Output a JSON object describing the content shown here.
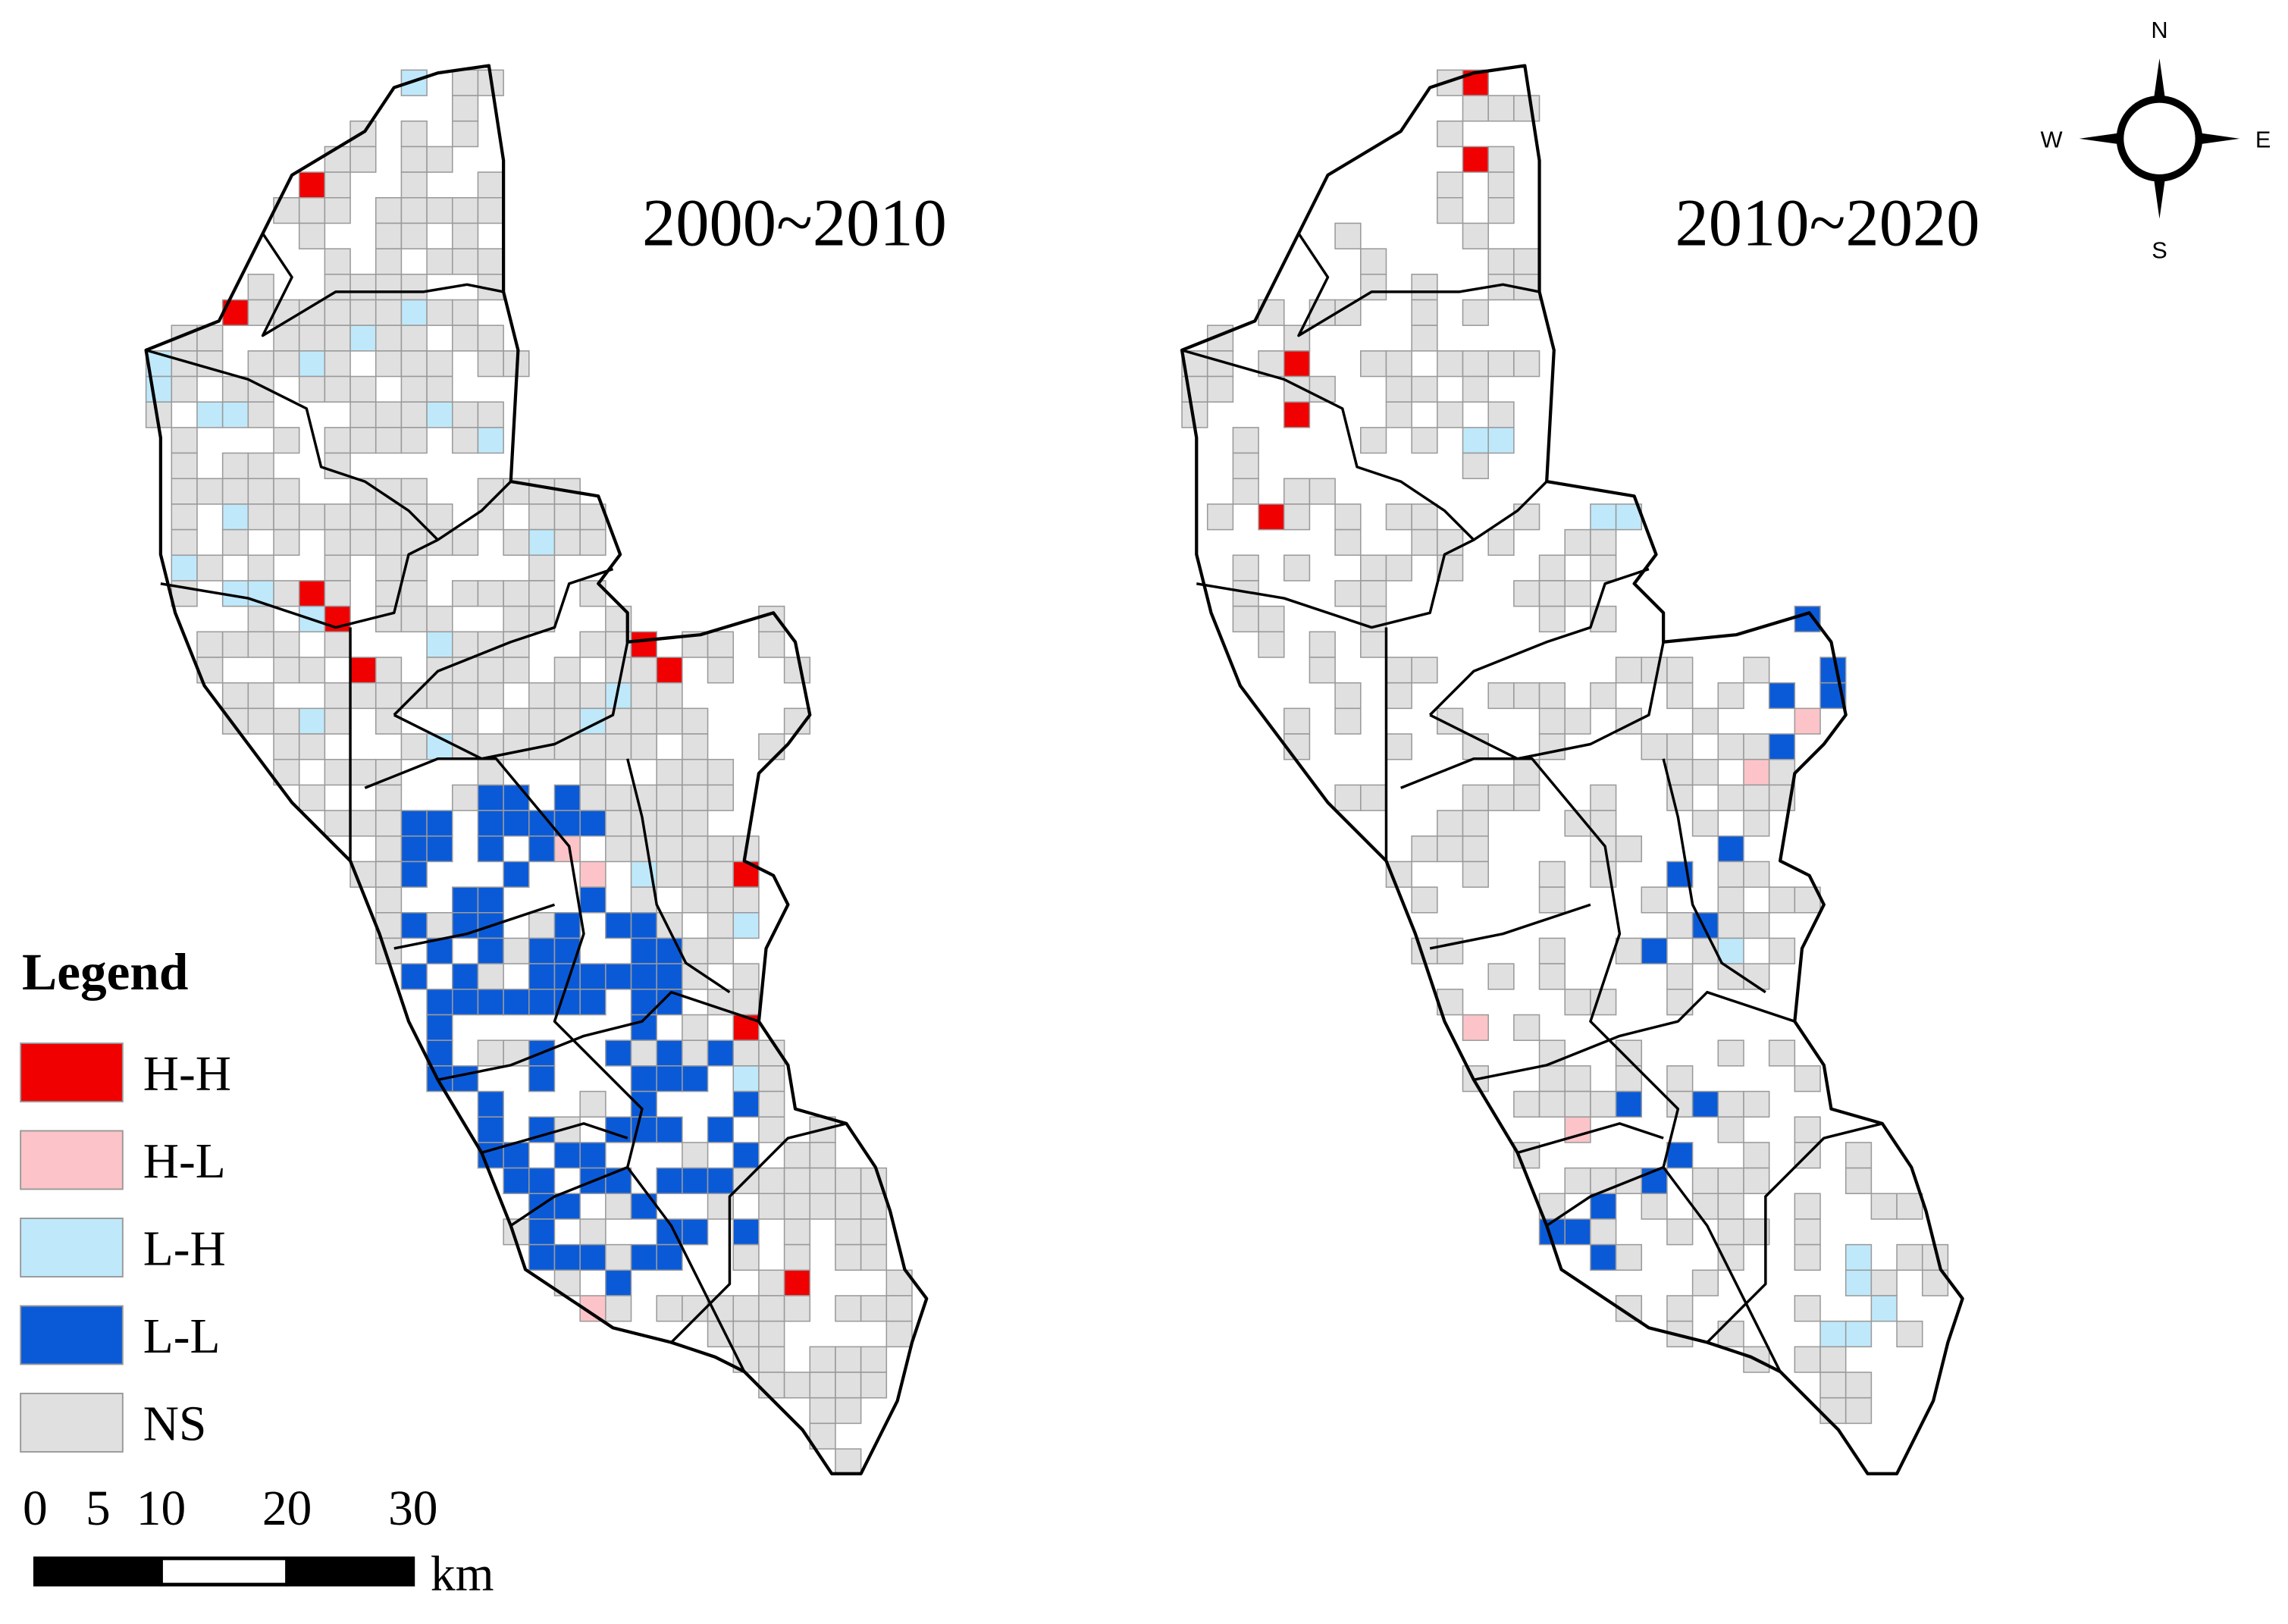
{
  "maps": [
    {
      "title": "2000~2010"
    },
    {
      "title": "2010~2020"
    }
  ],
  "legend": {
    "title": "Legend",
    "items": [
      {
        "label": "H-H",
        "color": "#f00000"
      },
      {
        "label": "H-L",
        "color": "#fcc4c8"
      },
      {
        "label": "L-H",
        "color": "#bfe9fb"
      },
      {
        "label": "L-L",
        "color": "#0a5ad8"
      },
      {
        "label": "NS",
        "color": "#e0e0e0"
      }
    ]
  },
  "scale_bar": {
    "ticks": [
      0,
      5,
      10,
      20,
      30
    ],
    "unit": "km"
  },
  "compass": {
    "north": "N",
    "south": "S",
    "west": "W",
    "east": "E"
  }
}
